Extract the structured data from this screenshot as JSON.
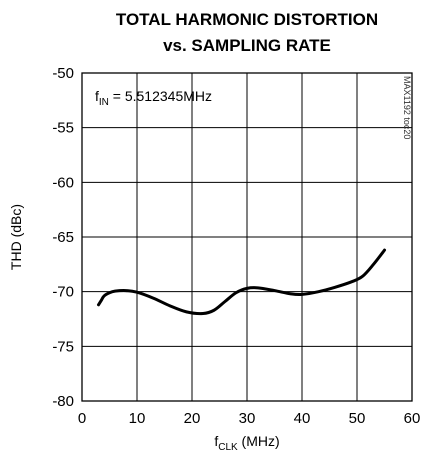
{
  "chart_data": {
    "type": "line",
    "title": "TOTAL HARMONIC DISTORTION",
    "subtitle": "vs. SAMPLING RATE",
    "xlabel": {
      "main": "f",
      "sub": "CLK",
      "unit": " (MHz)"
    },
    "ylabel": "THD (dBc)",
    "xlim": [
      0,
      60
    ],
    "ylim": [
      -80,
      -50
    ],
    "xticks": [
      0,
      10,
      20,
      30,
      40,
      50,
      60
    ],
    "yticks": [
      -50,
      -55,
      -60,
      -65,
      -70,
      -75,
      -80
    ],
    "grid": true,
    "annotation": {
      "prefix": "f",
      "sub": "IN",
      "text": " = 5.512345MHz"
    },
    "figure_code": "MAX1192 toc20",
    "series": [
      {
        "x": [
          3,
          3.5,
          4,
          5,
          6,
          8,
          10,
          13,
          16,
          19,
          22,
          24,
          26,
          28,
          30,
          32,
          35,
          38,
          40,
          43,
          46,
          49,
          51,
          53,
          55
        ],
        "y": [
          -71.2,
          -70.8,
          -70.4,
          -70.1,
          -69.95,
          -69.9,
          -70.05,
          -70.6,
          -71.3,
          -71.85,
          -72.0,
          -71.7,
          -70.9,
          -70.1,
          -69.7,
          -69.65,
          -69.9,
          -70.2,
          -70.25,
          -70.0,
          -69.6,
          -69.1,
          -68.6,
          -67.5,
          -66.2
        ]
      }
    ]
  }
}
